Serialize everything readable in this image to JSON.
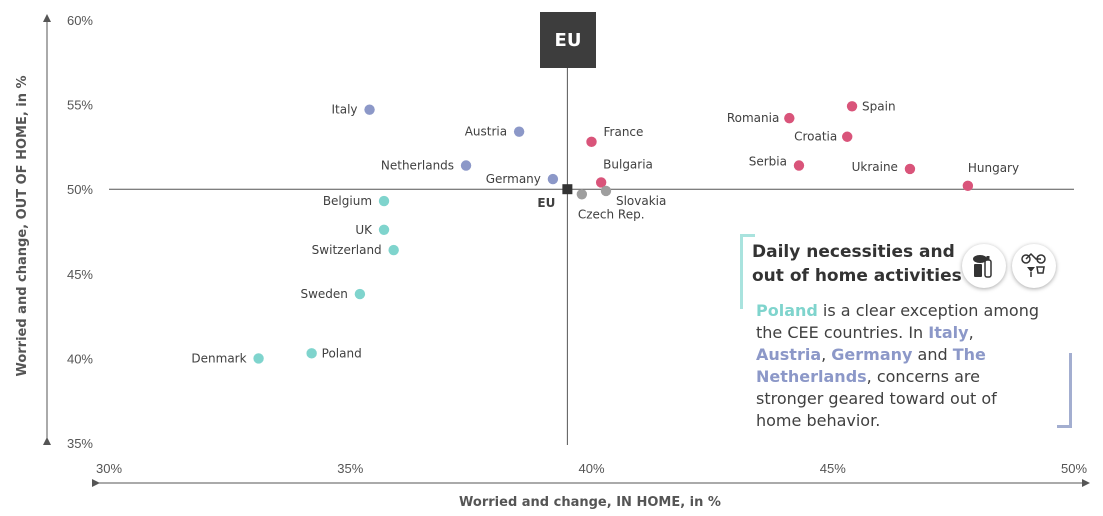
{
  "chart_data": {
    "type": "scatter",
    "xlabel": "Worried and change, IN HOME, in %",
    "ylabel": "Worried and change, OUT OF HOME, in %",
    "xlim": [
      30,
      50
    ],
    "ylim": [
      35,
      60
    ],
    "x_ticks": [
      "30%",
      "35%",
      "40%",
      "45%",
      "50%"
    ],
    "y_ticks": [
      "60%",
      "55%",
      "50%",
      "45%",
      "40%",
      "35%"
    ],
    "reference_lines": {
      "x": 39.5,
      "y": 50,
      "label": "EU"
    },
    "colors": {
      "teal": "#7fd4cd",
      "blue": "#8c98c8",
      "pink": "#d9547a",
      "grey": "#9e9e9e",
      "eu": "#333333"
    },
    "points": [
      {
        "name": "Italy",
        "x": 35.4,
        "y": 54.7,
        "color": "blue"
      },
      {
        "name": "Austria",
        "x": 38.5,
        "y": 53.4,
        "color": "blue"
      },
      {
        "name": "France",
        "x": 40.0,
        "y": 52.8,
        "color": "pink"
      },
      {
        "name": "Netherlands",
        "x": 37.4,
        "y": 51.4,
        "color": "blue"
      },
      {
        "name": "Germany",
        "x": 39.2,
        "y": 50.6,
        "color": "blue"
      },
      {
        "name": "Bulgaria",
        "x": 40.2,
        "y": 50.4,
        "color": "pink"
      },
      {
        "name": "Slovakia",
        "x": 40.3,
        "y": 49.9,
        "color": "grey"
      },
      {
        "name": "Czech Rep.",
        "x": 39.8,
        "y": 49.7,
        "color": "grey"
      },
      {
        "name": "Belgium",
        "x": 35.7,
        "y": 49.3,
        "color": "teal"
      },
      {
        "name": "UK",
        "x": 35.7,
        "y": 47.6,
        "color": "teal"
      },
      {
        "name": "Switzerland",
        "x": 35.9,
        "y": 46.4,
        "color": "teal"
      },
      {
        "name": "Sweden",
        "x": 35.2,
        "y": 43.8,
        "color": "teal"
      },
      {
        "name": "Denmark",
        "x": 33.1,
        "y": 40.0,
        "color": "teal"
      },
      {
        "name": "Poland",
        "x": 34.2,
        "y": 40.3,
        "color": "teal"
      },
      {
        "name": "Romania",
        "x": 44.1,
        "y": 54.2,
        "color": "pink"
      },
      {
        "name": "Spain",
        "x": 45.4,
        "y": 54.9,
        "color": "pink"
      },
      {
        "name": "Croatia",
        "x": 45.3,
        "y": 53.1,
        "color": "pink"
      },
      {
        "name": "Serbia",
        "x": 44.3,
        "y": 51.4,
        "color": "pink"
      },
      {
        "name": "Ukraine",
        "x": 46.6,
        "y": 51.2,
        "color": "pink"
      },
      {
        "name": "Hungary",
        "x": 47.8,
        "y": 50.2,
        "color": "pink"
      },
      {
        "name": "EU",
        "x": 39.5,
        "y": 50.0,
        "color": "eu",
        "marker": "square"
      }
    ]
  },
  "eu_box": "EU",
  "callout": {
    "heading": "Daily necessities and out of home activities",
    "body": {
      "poland": "Poland",
      "t1": " is a clear exception among the CEE countries. In ",
      "italy": "Italy",
      "c1": ", ",
      "austria": "Austria",
      "c2": ", ",
      "germany": "Germany",
      "t2": " and ",
      "netherlands": "The Netherlands",
      "t3": ", concerns are stronger geared toward out of home behavior."
    },
    "icons": [
      "bread-bottle-icon",
      "bicycle-drinks-icon"
    ]
  }
}
